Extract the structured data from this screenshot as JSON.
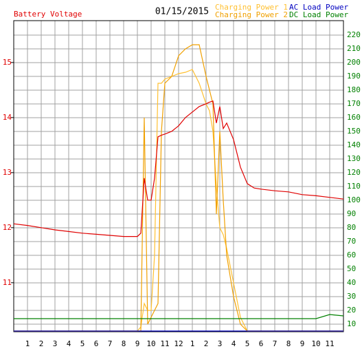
{
  "chart_data": {
    "type": "line",
    "title": "01/15/2015",
    "x": [
      0,
      1,
      2,
      3,
      4,
      5,
      6,
      7,
      8,
      9,
      9.25,
      9.5,
      9.75,
      10,
      10.25,
      10.5,
      10.75,
      11,
      11.5,
      12,
      12.5,
      13,
      13.5,
      14,
      14.25,
      14.5,
      14.75,
      15,
      15.25,
      15.5,
      16,
      16.5,
      17,
      17.5,
      18,
      19,
      20,
      21,
      22,
      23,
      24
    ],
    "series": [
      {
        "name": "Battery Voltage",
        "color": "#e00000",
        "axis": "y",
        "values": [
          12.07,
          12.04,
          12.0,
          11.96,
          11.93,
          11.9,
          11.88,
          11.86,
          11.84,
          11.84,
          11.9,
          12.9,
          12.5,
          12.5,
          12.9,
          13.65,
          13.68,
          13.7,
          13.75,
          13.85,
          14.0,
          14.1,
          14.2,
          14.25,
          14.28,
          14.3,
          13.9,
          14.2,
          13.8,
          13.9,
          13.6,
          13.1,
          12.8,
          12.72,
          12.7,
          12.67,
          12.65,
          12.6,
          12.58,
          12.55,
          12.52
        ]
      },
      {
        "name": "Charging Power 1",
        "color": "#ffc030",
        "axis": "y2",
        "values": [
          5,
          5,
          5,
          5,
          5,
          5,
          5,
          5,
          5,
          5,
          8,
          25,
          20,
          20,
          60,
          185,
          185,
          188,
          190,
          192,
          193,
          195,
          185,
          170,
          165,
          150,
          110,
          80,
          75,
          65,
          40,
          15,
          5,
          5,
          5,
          5,
          5,
          5,
          5,
          5,
          5
        ]
      },
      {
        "name": "Charging Power 2",
        "color": "#f0a000",
        "axis": "y2",
        "values": [
          5,
          5,
          5,
          5,
          5,
          5,
          5,
          5,
          5,
          5,
          5,
          160,
          10,
          15,
          20,
          25,
          150,
          185,
          190,
          205,
          210,
          213,
          213,
          190,
          180,
          170,
          90,
          150,
          100,
          60,
          30,
          10,
          5,
          5,
          5,
          5,
          5,
          5,
          5,
          5,
          5
        ]
      },
      {
        "name": "AC Load Power",
        "color": "#0000c0",
        "axis": "y2",
        "values": [
          5,
          5,
          5,
          5,
          5,
          5,
          5,
          5,
          5,
          5,
          5,
          5,
          5,
          5,
          5,
          5,
          5,
          5,
          5,
          5,
          5,
          5,
          5,
          5,
          5,
          5,
          5,
          5,
          5,
          5,
          5,
          5,
          5,
          5,
          5,
          5,
          5,
          5,
          5,
          5,
          5
        ]
      },
      {
        "name": "DC Load Power",
        "color": "#008000",
        "axis": "y2",
        "values": [
          14,
          14,
          14,
          14,
          14,
          14,
          14,
          14,
          14,
          14,
          14,
          14,
          14,
          14,
          14,
          14,
          14,
          14,
          14,
          14,
          14,
          14,
          14,
          14,
          14,
          14,
          14,
          14,
          14,
          14,
          14,
          14,
          14,
          14,
          14,
          14,
          14,
          14,
          14,
          17,
          16
        ]
      }
    ],
    "xlim": [
      0,
      24
    ],
    "xticks": [
      1,
      2,
      3,
      4,
      5,
      6,
      7,
      8,
      9,
      10,
      11,
      12,
      {
        "value": 13,
        "label": "1"
      },
      {
        "value": 14,
        "label": "2"
      },
      {
        "value": 15,
        "label": "3"
      },
      {
        "value": 16,
        "label": "4"
      },
      {
        "value": 17,
        "label": "5"
      },
      {
        "value": 18,
        "label": "6"
      },
      {
        "value": 19,
        "label": "7"
      },
      {
        "value": 20,
        "label": "8"
      },
      {
        "value": 21,
        "label": "9"
      },
      {
        "value": 22,
        "label": "10"
      },
      {
        "value": 23,
        "label": "11"
      }
    ],
    "ylim": [
      10.11,
      15.76
    ],
    "yticks": [
      11,
      12,
      13,
      14,
      15
    ],
    "y2lim": [
      4.5,
      230.5
    ],
    "y2ticks": [
      10,
      20,
      30,
      40,
      50,
      60,
      70,
      80,
      90,
      100,
      110,
      120,
      130,
      140,
      150,
      160,
      170,
      180,
      190,
      200,
      210,
      220
    ],
    "grid": true
  }
}
